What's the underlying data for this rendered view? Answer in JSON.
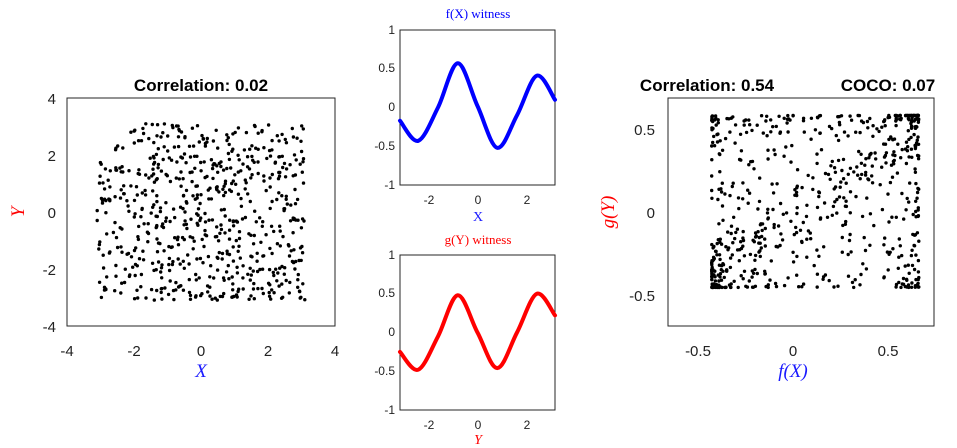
{
  "chart_data": [
    {
      "type": "scatter",
      "title": "Correlation: 0.02",
      "xlabel": "X",
      "ylabel": "Y",
      "xlim": [
        -4,
        4
      ],
      "ylim": [
        -4,
        4
      ],
      "xticks": [
        "-4",
        "-2",
        "0",
        "2",
        "4"
      ],
      "yticks": [
        "4",
        "2",
        "0",
        "-2",
        "-4"
      ],
      "x_range_of_points": [
        -3.1,
        3.1
      ],
      "y_range_of_points": [
        -3.1,
        3.1
      ],
      "n_points": 650,
      "marker_color": "#000000",
      "xlabel_color": "#1a1aff",
      "ylabel_color": "#ff0000"
    },
    {
      "type": "line",
      "title": "f(X) witness",
      "xlabel": "X",
      "xlim": [
        -3.14,
        3.14
      ],
      "ylim": [
        -1,
        1
      ],
      "xticks": [
        "-2",
        "0",
        "2"
      ],
      "yticks": [
        "1",
        "0.5",
        "0",
        "-0.5",
        "-1"
      ],
      "x": [
        -3.14,
        -2.4,
        -1.6,
        -0.8,
        0,
        0.8,
        1.6,
        2.4,
        3.14
      ],
      "y": [
        -0.17,
        -0.43,
        0.0,
        0.57,
        0.02,
        -0.52,
        -0.1,
        0.41,
        0.1
      ],
      "color": "#0000ff"
    },
    {
      "type": "line",
      "title": "g(Y) witness",
      "xlabel": "Y",
      "xlim": [
        -3.14,
        3.14
      ],
      "ylim": [
        -1,
        1
      ],
      "xticks": [
        "-2",
        "0",
        "2"
      ],
      "yticks": [
        "1",
        "0.5",
        "0",
        "-0.5",
        "-1"
      ],
      "x": [
        -3.14,
        -2.4,
        -1.6,
        -0.8,
        0,
        0.8,
        1.6,
        2.4,
        3.14
      ],
      "y": [
        -0.25,
        -0.48,
        -0.05,
        0.48,
        0.0,
        -0.46,
        0.0,
        0.5,
        0.22
      ],
      "color": "#ff0000"
    },
    {
      "type": "scatter",
      "title": "Correlation: 0.54",
      "title2": "COCO: 0.07",
      "xlabel": "f(X)",
      "ylabel": "g(Y)",
      "xlim": [
        -0.75,
        0.65
      ],
      "ylim": [
        -0.7,
        0.6
      ],
      "xticks": [
        "-0.5",
        "0",
        "0.5"
      ],
      "yticks": [
        "0.5",
        "0",
        "-0.5"
      ],
      "x_range_of_points": [
        -0.52,
        0.57
      ],
      "y_range_of_points": [
        -0.48,
        0.5
      ],
      "n_points": 650,
      "marker_color": "#000000",
      "xlabel_color": "#1a1aff",
      "ylabel_color": "#ff0000"
    }
  ]
}
